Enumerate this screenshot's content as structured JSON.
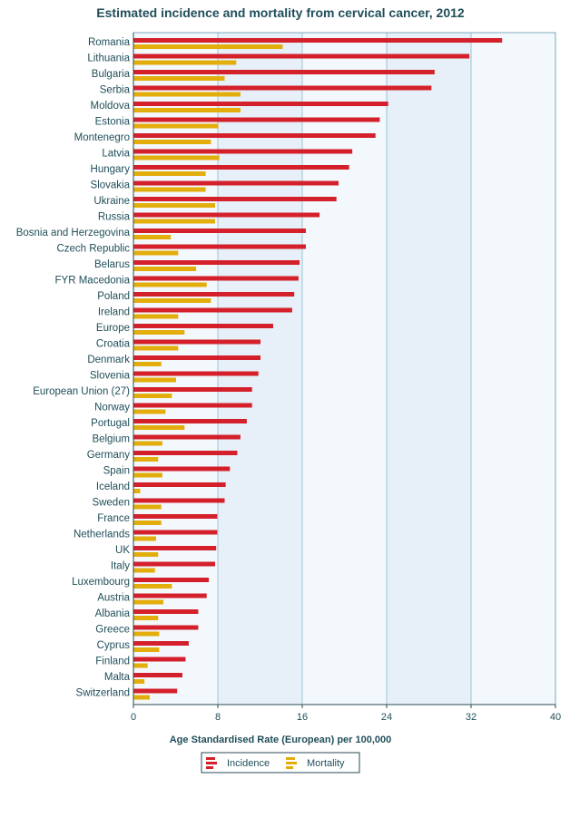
{
  "chart_data": {
    "type": "bar",
    "orientation": "horizontal",
    "title": "Estimated incidence and mortality from cervical cancer, 2012",
    "xlabel": "Age Standardised Rate (European) per 100,000",
    "ylabel": "",
    "xlim": [
      0,
      40
    ],
    "x_ticks": [
      "0",
      "8",
      "16",
      "24",
      "32",
      "40"
    ],
    "grid": true,
    "legend_position": "bottom",
    "colors": {
      "incidence": "#d3202a",
      "mortality": "#e3ad0c",
      "plot_bg": "#f3f8fd",
      "band_bg": "#e7eff8",
      "grid": "#9ec3d6",
      "text": "#1f4e5a"
    },
    "categories": [
      "Romania",
      "Lithuania",
      "Bulgaria",
      "Serbia",
      "Moldova",
      "Estonia",
      "Montenegro",
      "Latvia",
      "Hungary",
      "Slovakia",
      "Ukraine",
      "Russia",
      "Bosnia and Herzegovina",
      "Czech Republic",
      "Belarus",
      "FYR Macedonia",
      "Poland",
      "Ireland",
      "Europe",
      "Croatia",
      "Denmark",
      "Slovenia",
      "European Union (27)",
      "Norway",
      "Portugal",
      "Belgium",
      "Germany",
      "Spain",
      "Iceland",
      "Sweden",
      "France",
      "Netherlands",
      "UK",
      "Italy",
      "Luxembourg",
      "Austria",
      "Albania",
      "Greece",
      "Cyprus",
      "Finland",
      "Malta",
      "Switzerland"
    ],
    "series": [
      {
        "name": "Incidence",
        "values": [
          34.9,
          31.8,
          28.5,
          28.2,
          24.1,
          23.3,
          22.9,
          20.7,
          20.4,
          19.4,
          19.2,
          17.6,
          16.3,
          16.3,
          15.7,
          15.6,
          15.2,
          15.0,
          13.2,
          12.0,
          12.0,
          11.8,
          11.2,
          11.2,
          10.7,
          10.1,
          9.8,
          9.1,
          8.7,
          8.6,
          7.9,
          7.9,
          7.8,
          7.7,
          7.1,
          6.9,
          6.1,
          6.1,
          5.2,
          4.9,
          4.6,
          4.1
        ]
      },
      {
        "name": "Mortality",
        "values": [
          14.1,
          9.7,
          8.6,
          10.1,
          10.1,
          8.0,
          7.3,
          8.1,
          6.8,
          6.8,
          7.7,
          7.7,
          3.5,
          4.2,
          5.9,
          6.9,
          7.3,
          4.2,
          4.8,
          4.2,
          2.6,
          4.0,
          3.6,
          3.0,
          4.8,
          2.7,
          2.3,
          2.7,
          0.6,
          2.6,
          2.6,
          2.1,
          2.3,
          2.0,
          3.6,
          2.8,
          2.3,
          2.4,
          2.4,
          1.3,
          1.0,
          1.5
        ]
      }
    ]
  }
}
